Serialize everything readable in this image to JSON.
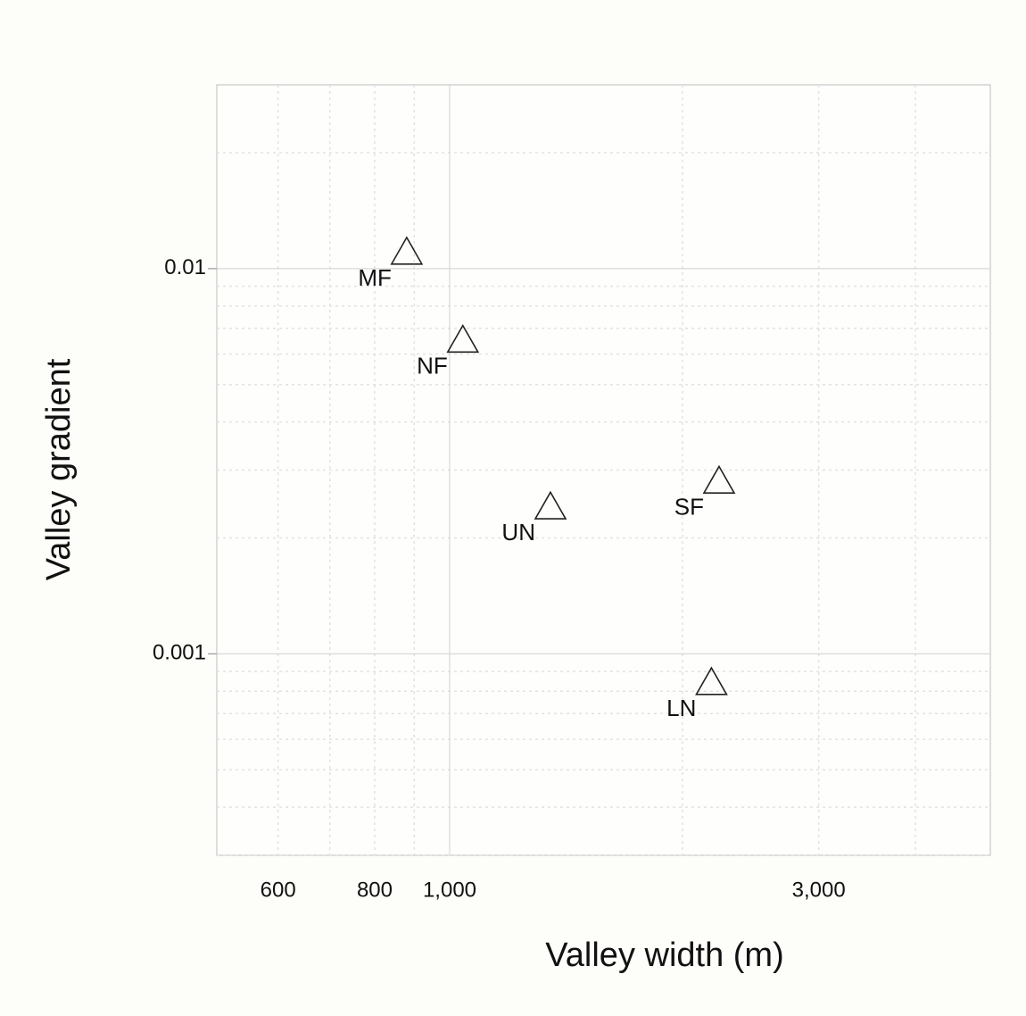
{
  "chart_data": {
    "type": "scatter",
    "x_label": "Valley width (m)",
    "y_label": "Valley gradient",
    "log_x": true,
    "log_y": true,
    "grid": true,
    "xlim": [
      500,
      5000
    ],
    "ylim": [
      0.0003,
      0.03
    ],
    "xticks": [
      600,
      800,
      {
        "value": 1000,
        "label": "1,000"
      },
      {
        "value": 3000,
        "label": "3,000"
      }
    ],
    "x_minor_ticks": [
      700,
      900,
      2000,
      4000
    ],
    "yticks": [
      0.001,
      0.01
    ],
    "y_minor_ticks": [
      0.0003,
      0.0004,
      0.0005,
      0.0006,
      0.0007,
      0.0008,
      0.0009,
      0.002,
      0.003,
      0.004,
      0.005,
      0.006,
      0.007,
      0.008,
      0.009,
      0.02
    ],
    "marker": "triangle",
    "color": "#222222",
    "labels": [
      "MF",
      "NF",
      "UN",
      "SF",
      "LN"
    ],
    "x": [
      880,
      1040,
      1350,
      2230,
      2180
    ],
    "values": [
      0.011,
      0.0065,
      0.0024,
      0.0028,
      0.00084
    ]
  }
}
